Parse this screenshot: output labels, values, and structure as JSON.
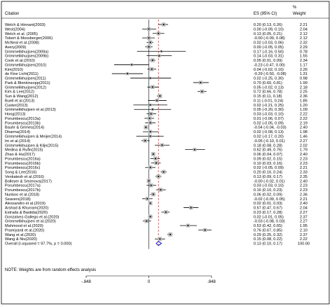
{
  "header": {
    "citation": "Citation",
    "es": "ES (95% CI)",
    "weight_pct": "%",
    "weight": "Weight"
  },
  "note": "NOTE: Weights are from random effects analysis",
  "colors": {
    "line": "#000000",
    "square": "#bbbbbb",
    "diamond": "#2b2bd0",
    "null_line": "#b03030",
    "frame": "#000000"
  },
  "chart_data": {
    "type": "forest",
    "xlim": [
      -0.848,
      0.848
    ],
    "ticks": [
      -0.848,
      0,
      0.848
    ],
    "tick_labels": [
      "-.848",
      "0",
      ".848"
    ],
    "null_line": 0,
    "overall_line": 0.13,
    "studies": [
      {
        "label": "Welch & Hinnant(2003)",
        "es": 0.2,
        "lo": 0.13,
        "hi": 0.26,
        "es_text": "0.20 (0.13, 0.26)",
        "weight": "2.21"
      },
      {
        "label": "West(2004)",
        "es": 0.0,
        "lo": -0.09,
        "hi": 0.1,
        "es_text": "0.00 (-0.09, 0.10)",
        "weight": "2.04"
      },
      {
        "label": "Welch et al. (2005)",
        "es": 0.13,
        "lo": 0.05,
        "hi": 0.21,
        "es_text": "0.13 (0.05, 0.21)",
        "weight": "2.12"
      },
      {
        "label": "Tobert & Mossberger(2006)",
        "es": -0.0,
        "lo": -0.09,
        "hi": 0.08,
        "es_text": "-0.00 (-0.09, 0.08)",
        "weight": "2.12"
      },
      {
        "label": "McNeal et al.(2008)",
        "es": 0.02,
        "lo": -0.03,
        "hi": 0.06,
        "es_text": "0.02 (-0.03, 0.06)",
        "weight": "2.32"
      },
      {
        "label": "Avery(2009)",
        "es": 0.0,
        "lo": -0.05,
        "hi": 0.05,
        "es_text": "0.00 (-0.05, 0.05)",
        "weight": "2.29"
      },
      {
        "label": "Grimmelikhuijsen(2009a)",
        "es": 0.17,
        "lo": -0.16,
        "hi": 0.5,
        "es_text": "0.17 (-0.16, 0.50)",
        "weight": "0.78"
      },
      {
        "label": "Grimmelikhuijsen(2009b)",
        "es": 0.14,
        "lo": -0.03,
        "hi": 0.31,
        "es_text": "0.14 (-0.03, 0.31)",
        "weight": "1.55"
      },
      {
        "label": "Cook et al.(2010)",
        "es": 0.05,
        "lo": 0.01,
        "hi": 0.09,
        "es_text": "0.05 (0.01, 0.09)",
        "weight": "2.34"
      },
      {
        "label": "Grimmelikhuijsen(2010)",
        "es": -0.23,
        "lo": -0.47,
        "hi": 0.0,
        "es_text": "-0.23 (-0.47, 0.00)",
        "weight": "1.17"
      },
      {
        "label": "Kim(2010)",
        "es": 0.04,
        "lo": -0.02,
        "hi": 0.1,
        "es_text": "0.04 (-0.02, 0.10)",
        "weight": "2.26"
      },
      {
        "label": "de Fine Licht(2011)",
        "es": -0.29,
        "lo": -0.5,
        "hi": -0.08,
        "es_text": "-0.29 (-0.50, -0.08)",
        "weight": "1.31"
      },
      {
        "label": "Grimmelikhuijsen(2011)",
        "es": 0.02,
        "lo": -0.25,
        "hi": 0.3,
        "es_text": "0.02 (-0.25, 0.30)",
        "weight": "0.98"
      },
      {
        "label": "Park & Blenkinsopp(2011)",
        "es": 0.7,
        "lo": 0.6,
        "hi": 0.81,
        "es_text": "0.70 (0.60, 0.81)",
        "weight": "1.99"
      },
      {
        "label": "Grimmelikhuijsen(2012)",
        "es": 0.05,
        "lo": -0.02,
        "hi": 0.13,
        "es_text": "0.05 (-0.02, 0.13)",
        "weight": "2.18"
      },
      {
        "label": "Kim & Lee(2012)",
        "es": 0.72,
        "lo": 0.66,
        "hi": 0.78,
        "es_text": "0.72 (0.66, 0.78)",
        "weight": "2.25"
      },
      {
        "label": "Sun & Wang(2012)",
        "es": 0.15,
        "lo": 0.11,
        "hi": 0.18,
        "es_text": "0.15 (0.11, 0.18)",
        "weight": "2.36"
      },
      {
        "label": "Buell et al.(2013)",
        "es": 0.11,
        "lo": -0.01,
        "hi": 0.24,
        "es_text": "0.11 (-0.01, 0.24)",
        "weight": "1.85"
      },
      {
        "label": "Custer(2013)",
        "es": 0.02,
        "lo": -0.21,
        "hi": 0.25,
        "es_text": "0.02 (-0.21, 0.25)",
        "weight": "1.20"
      },
      {
        "label": "Grimmelikhuijsen et al.(2013)",
        "es": 0.05,
        "lo": -0.2,
        "hi": 0.3,
        "es_text": "0.05 (-0.20, 0.30)",
        "weight": "1.09"
      },
      {
        "label": "Hong(2013)",
        "es": 0.03,
        "lo": -0.03,
        "hi": 0.1,
        "es_text": "0.03 (-0.03, 0.10)",
        "weight": "2.22"
      },
      {
        "label": "Porumbescu(2013a)",
        "es": 0.01,
        "lo": -0.06,
        "hi": 0.07,
        "es_text": "0.01 (-0.06, 0.07)",
        "weight": "2.22"
      },
      {
        "label": "Porumbescu(2013b)",
        "es": 0.02,
        "lo": -0.05,
        "hi": 0.09,
        "es_text": "0.02 (-0.05, 0.09)",
        "weight": "2.19"
      },
      {
        "label": "Bauhr & Grimes(2014)",
        "es": -0.04,
        "lo": -0.04,
        "hi": -0.03,
        "es_text": "-0.04 (-0.04, -0.03)",
        "weight": "2.40"
      },
      {
        "label": "Dharma(2014)",
        "es": 0.02,
        "lo": -0.08,
        "hi": 0.13,
        "es_text": "0.02 (-0.08, 0.13)",
        "weight": "1.98"
      },
      {
        "label": "Grimmelikhuijsen & Meijer(2014)",
        "es": 0.02,
        "lo": -0.17,
        "hi": 0.2,
        "es_text": "0.02 (-0.17, 0.20)",
        "weight": "1.46"
      },
      {
        "label": "Im et al.(2014)",
        "es": -0.05,
        "lo": -0.1,
        "hi": 0.01,
        "es_text": "-0.05 (-0.10, 0.01)",
        "weight": "2.27"
      },
      {
        "label": "Grimmelikhuijsen & Klijn(2015)",
        "es": 0.18,
        "lo": 0.08,
        "hi": 0.28,
        "es_text": "0.18 (0.08, 0.28)",
        "weight": "2.02"
      },
      {
        "label": "Medina & Rufin(2015)",
        "es": 0.62,
        "lo": 0.49,
        "hi": 0.76,
        "es_text": "0.62 (0.49, 0.76)",
        "weight": "1.79"
      },
      {
        "label": "Zhao & Hu(2017)",
        "es": 0.06,
        "lo": 0.04,
        "hi": 0.07,
        "es_text": "0.06 (0.04, 0.07)",
        "weight": "2.40"
      },
      {
        "label": "Porumbescu(2016a)",
        "es": 0.09,
        "lo": 0.02,
        "hi": 0.15,
        "es_text": "0.09 (0.02, 0.15)",
        "weight": "2.23"
      },
      {
        "label": "Porumbescu(2016b)",
        "es": 0.1,
        "lo": 0.03,
        "hi": 0.16,
        "es_text": "0.10 (0.03, 0.16)",
        "weight": "2.23"
      },
      {
        "label": "Porumbescu(2016c)",
        "es": 0.02,
        "lo": -0.05,
        "hi": 0.09,
        "es_text": "0.02 (-0.05, 0.09)",
        "weight": "2.21"
      },
      {
        "label": "Song & Lee(2016)",
        "es": 0.2,
        "lo": 0.16,
        "hi": 0.24,
        "es_text": "0.20 (0.16, 0.24)",
        "weight": "2.33"
      },
      {
        "label": "Venkatesh et al.(2016)",
        "es": 0.13,
        "lo": 0.09,
        "hi": 0.17,
        "es_text": "0.13 (0.09, 0.17)",
        "weight": "2.35"
      },
      {
        "label": "Bolleyer & Smirnova(2017)",
        "es": -0.0,
        "lo": -0.02,
        "hi": 0.01,
        "es_text": "-0.00 (-0.02, 0.01)",
        "weight": "2.40"
      },
      {
        "label": "Porumbescu(2017a)",
        "es": 0.03,
        "lo": -0.03,
        "hi": 0.1,
        "es_text": "0.03 (-0.03, 0.10)",
        "weight": "2.23"
      },
      {
        "label": "Porumbescu(2017b)",
        "es": 0.16,
        "lo": 0.1,
        "hi": 0.23,
        "es_text": "0.16 (0.10, 0.23)",
        "weight": "2.23"
      },
      {
        "label": "Nunkoo et al.(2018)",
        "es": 0.06,
        "lo": 0.02,
        "hi": 0.09,
        "es_text": "0.06 (0.02, 0.09)",
        "weight": "2.36"
      },
      {
        "label": "Seavers(2018)",
        "es": -0.02,
        "lo": -0.09,
        "hi": 0.05,
        "es_text": "-0.02 (-0.09, 0.05)",
        "weight": "2.21"
      },
      {
        "label": "Alessandro et al.(2019)",
        "es": 0.02,
        "lo": 0.01,
        "hi": 0.03,
        "es_text": "0.02 (0.01, 0.03)",
        "weight": "2.40"
      },
      {
        "label": "Arshad & Khurram(2020)",
        "es": 0.57,
        "lo": 0.47,
        "hi": 0.67,
        "es_text": "0.57 (0.47, 0.67)",
        "weight": "2.04"
      },
      {
        "label": "Estrada & Bastida(2020)",
        "es": 0.23,
        "lo": 0.17,
        "hi": 0.28,
        "es_text": "0.23 (0.17, 0.28)",
        "weight": "2.27"
      },
      {
        "label": "Gonzalvez-Gallego et al.(2020)",
        "es": 0.02,
        "lo": -0.01,
        "hi": 0.05,
        "es_text": "0.02 (-0.01, 0.05)",
        "weight": "2.37"
      },
      {
        "label": "Grimmelikhuijsen et al.(2020)",
        "es": -0.03,
        "lo": -0.08,
        "hi": 0.03,
        "es_text": "-0.03 (-0.08, 0.03)",
        "weight": "2.27"
      },
      {
        "label": "Mahmood et al.(2020)",
        "es": 0.53,
        "lo": 0.42,
        "hi": 0.65,
        "es_text": "0.53 (0.42, 0.65)",
        "weight": "1.95"
      },
      {
        "label": "Pramiyanti et al.(2020)",
        "es": 0.76,
        "lo": 0.67,
        "hi": 0.85,
        "es_text": "0.76 (0.67, 0.85)",
        "weight": "2.10"
      },
      {
        "label": "Wang et al.(2020)",
        "es": 0.29,
        "lo": 0.25,
        "hi": 0.32,
        "es_text": "0.29 (0.25, 0.32)",
        "weight": "2.37"
      },
      {
        "label": "Wang & Niu(2020)",
        "es": 0.15,
        "lo": 0.08,
        "hi": 0.22,
        "es_text": "0.15 (0.08, 0.22)",
        "weight": "2.22"
      }
    ],
    "overall": {
      "label": "Overall  (I-squared = 97.7%, p = 0.000)",
      "es": 0.13,
      "lo": 0.1,
      "hi": 0.17,
      "es_text": "0.13 (0.10, 0.17)",
      "weight": "100.00"
    }
  }
}
